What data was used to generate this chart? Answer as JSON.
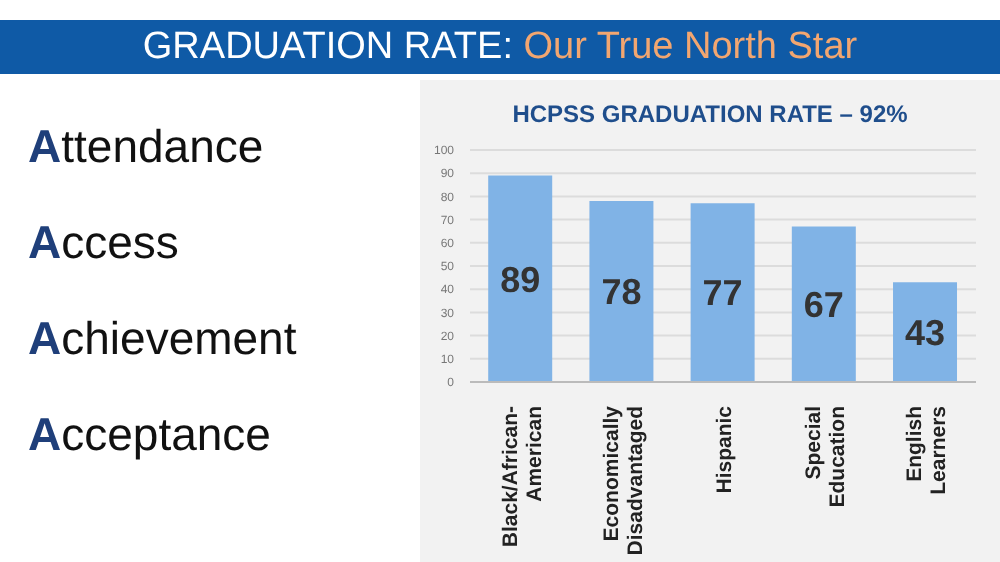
{
  "chart_data": {
    "type": "bar",
    "title": "HCPSS GRADUATION RATE – 92%",
    "annotations": [
      "GRADUATION RATE:",
      "Our True North Star",
      "Attendance",
      "Access",
      "Achievement",
      "Acceptance"
    ],
    "categories": [
      "Black/African-American",
      "Economically Disadvantaged",
      "Hispanic",
      "Special Education",
      "English Learners"
    ],
    "values": [
      89,
      78,
      77,
      67,
      43
    ],
    "color": "#80b3e6",
    "ylim": [
      0,
      100
    ],
    "yticks": [
      0,
      10,
      20,
      30,
      40,
      50,
      60,
      70,
      80,
      90,
      100
    ],
    "grid": "y",
    "data_labels": true
  }
}
